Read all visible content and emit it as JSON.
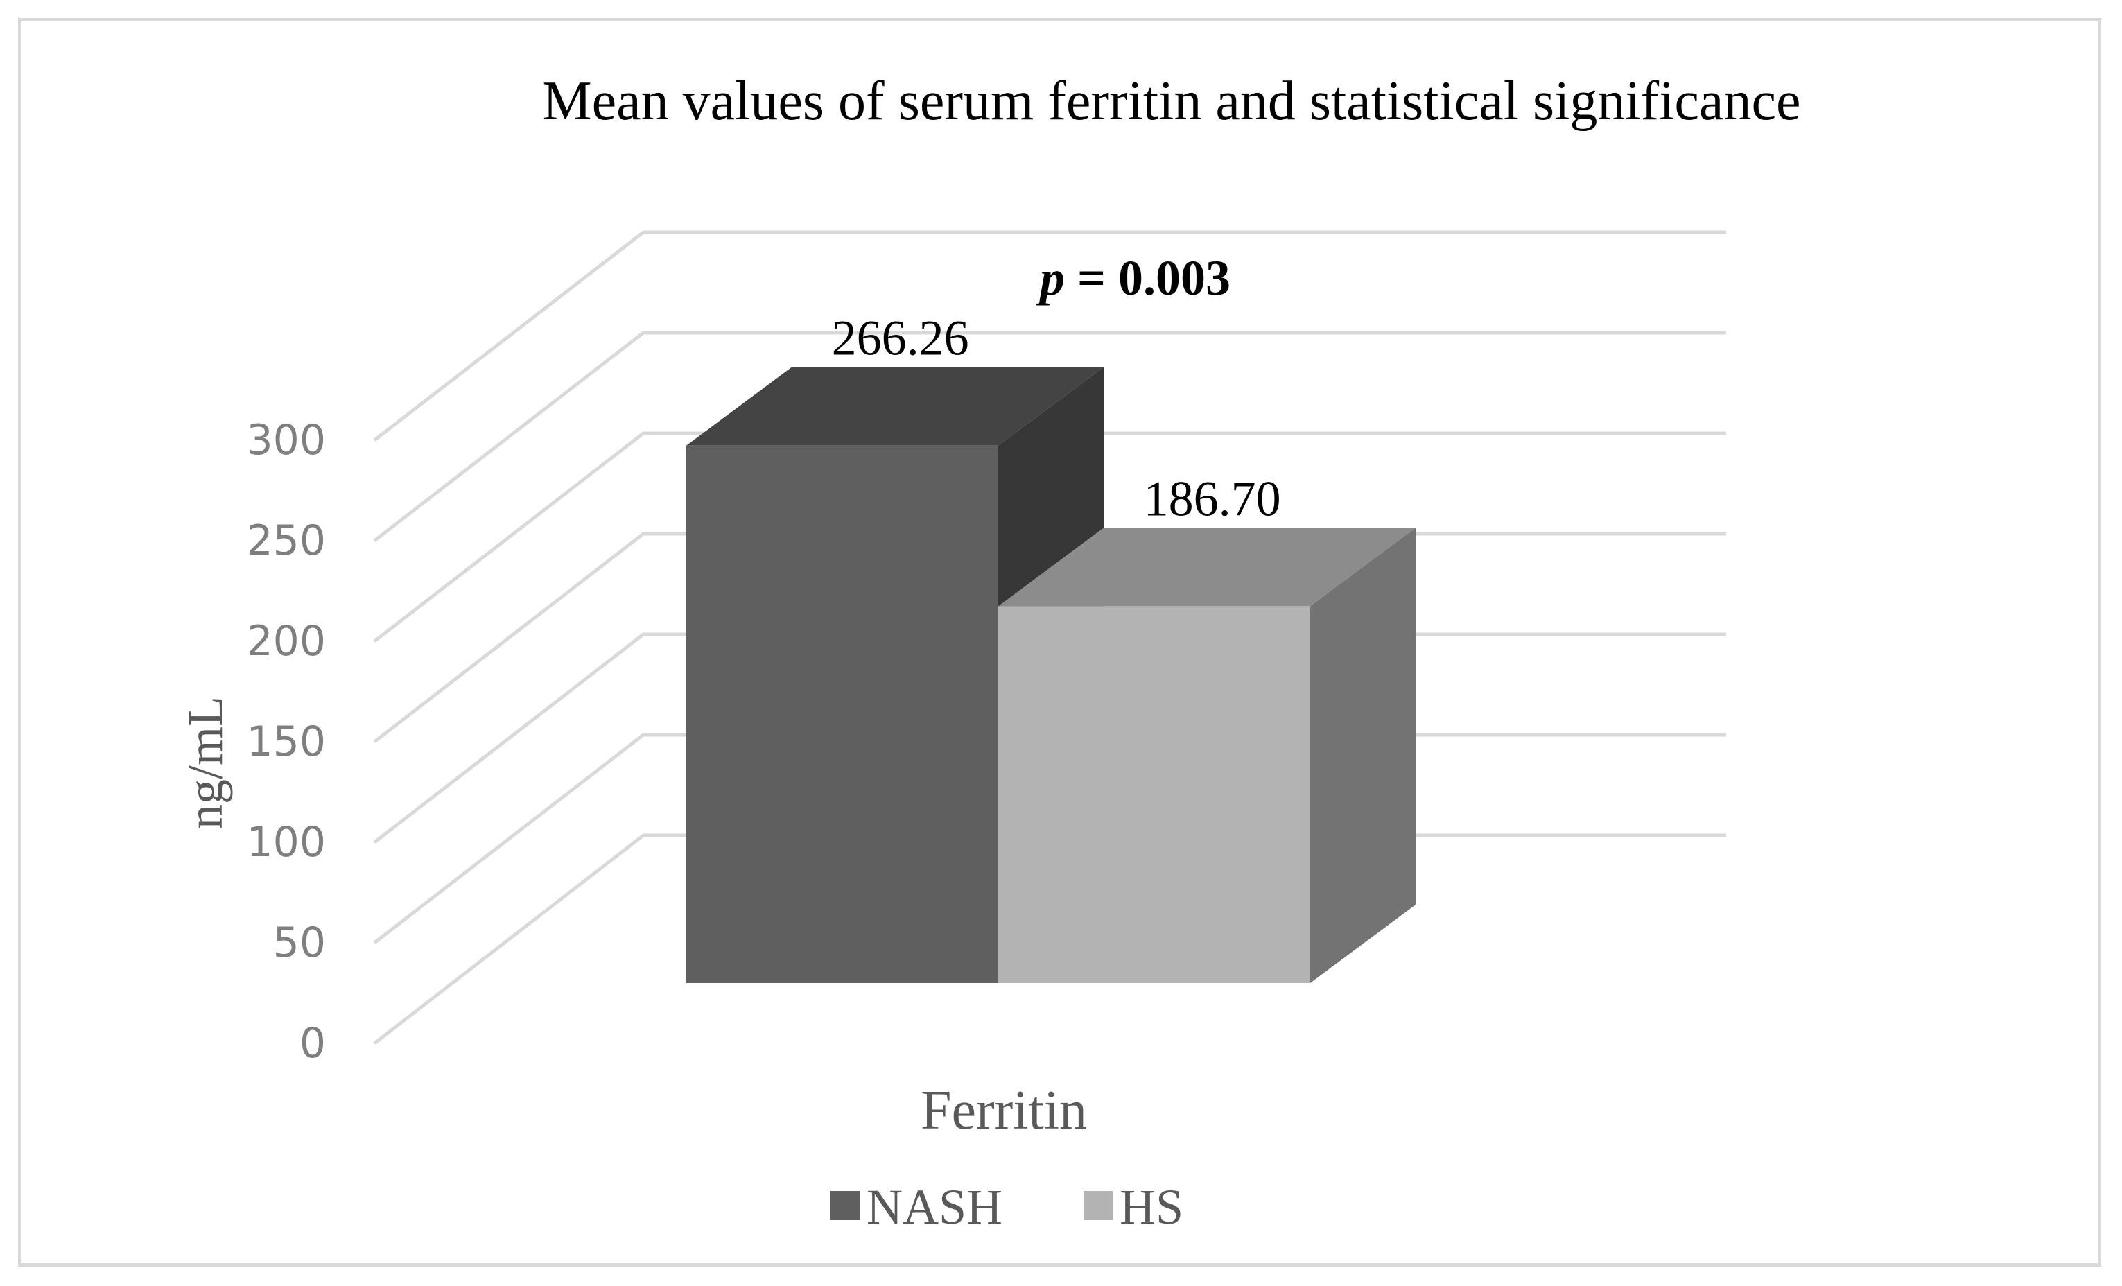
{
  "chart_data": {
    "type": "bar",
    "title": "Mean values of serum ferritin and statistical significance",
    "ylabel": "ng/mL",
    "xlabel": "",
    "categories": [
      "Ferritin"
    ],
    "series": [
      {
        "name": "NASH",
        "values": [
          266.26
        ],
        "color": "#5f5f5f",
        "label": "266.26"
      },
      {
        "name": "HS",
        "values": [
          186.7
        ],
        "color": "#b3b3b3",
        "label": "186.70"
      }
    ],
    "ylim": [
      0,
      300
    ],
    "yticks": [
      "0",
      "50",
      "100",
      "150",
      "200",
      "250",
      "300"
    ],
    "annotation": {
      "symbol": "p",
      "text": " = 0.003"
    },
    "grid": true,
    "legend": "bottom",
    "style": "3d-column"
  }
}
